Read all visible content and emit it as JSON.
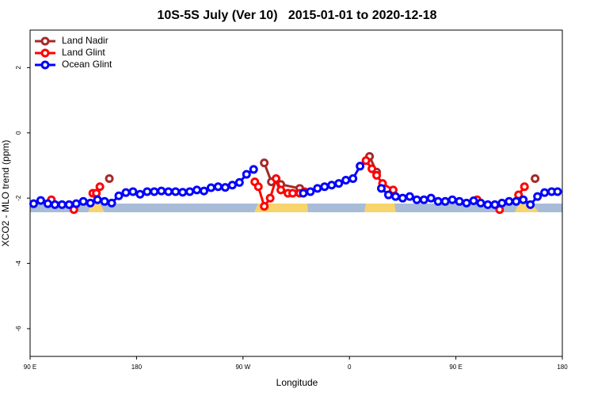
{
  "chart_data": {
    "type": "line",
    "title": "10S-5S July (Ver 10)   2015-01-01 to 2020-12-18",
    "xlabel": "Longitude",
    "ylabel": "XCO2 - MLO trend (ppm)",
    "xlim": [
      90,
      540
    ],
    "xticks": [
      {
        "value": 90,
        "label": "90 E"
      },
      {
        "value": 180,
        "label": "180"
      },
      {
        "value": 270,
        "label": "90 W"
      },
      {
        "value": 360,
        "label": "0"
      },
      {
        "value": 450,
        "label": "90 E"
      },
      {
        "value": 540,
        "label": "180"
      }
    ],
    "ylim": [
      -6.85,
      3.15
    ],
    "yticks": [
      -6,
      -4,
      -2,
      0,
      2
    ],
    "legend": "top-left",
    "series": [
      {
        "name": "Land Nadir",
        "color": "#a52a2a",
        "x": [
          157,
          null,
          288,
          294,
          302,
          318,
          null,
          377,
          383,
          null,
          517
        ],
        "values": [
          -1.4,
          null,
          -0.92,
          -1.5,
          -1.58,
          -1.7,
          null,
          -0.72,
          -1.2,
          null,
          -1.4
        ]
      },
      {
        "name": "Land Glint",
        "color": "#ff0000",
        "x": [
          108,
          127,
          null,
          143,
          146,
          149,
          null,
          280,
          283,
          288,
          293,
          298,
          302,
          308,
          312,
          318,
          322,
          null,
          374,
          379,
          383,
          388,
          397,
          null,
          468,
          487,
          null,
          503,
          508
        ],
        "values": [
          -2.05,
          -2.35,
          null,
          -1.85,
          -1.85,
          -1.65,
          null,
          -1.5,
          -1.65,
          -2.25,
          -2.0,
          -1.4,
          -1.75,
          -1.85,
          -1.85,
          -1.85,
          -1.8,
          null,
          -0.85,
          -1.1,
          -1.3,
          -1.55,
          -1.75,
          null,
          -2.05,
          -2.35,
          null,
          -1.9,
          -1.65
        ]
      },
      {
        "name": "Ocean Glint",
        "color": "#0000ff",
        "x": [
          93,
          99,
          105,
          111,
          117,
          123,
          129,
          135,
          141,
          147,
          153,
          159,
          165,
          171,
          177,
          183,
          189,
          195,
          201,
          207,
          213,
          219,
          225,
          231,
          237,
          243,
          249,
          255,
          261,
          267,
          273,
          279,
          null,
          321,
          327,
          333,
          339,
          345,
          351,
          357,
          363,
          369,
          null,
          387,
          393,
          399,
          405,
          411,
          417,
          423,
          429,
          435,
          441,
          447,
          453,
          459,
          465,
          471,
          477,
          483,
          489,
          495,
          501,
          507,
          513,
          519,
          525,
          531,
          536
        ],
        "values": [
          -2.17,
          -2.07,
          -2.17,
          -2.2,
          -2.2,
          -2.2,
          -2.17,
          -2.1,
          -2.15,
          -2.05,
          -2.1,
          -2.15,
          -1.93,
          -1.83,
          -1.8,
          -1.88,
          -1.8,
          -1.8,
          -1.78,
          -1.8,
          -1.8,
          -1.82,
          -1.8,
          -1.75,
          -1.78,
          -1.68,
          -1.65,
          -1.67,
          -1.6,
          -1.52,
          -1.27,
          -1.12,
          null,
          -1.85,
          -1.8,
          -1.7,
          -1.65,
          -1.6,
          -1.55,
          -1.45,
          -1.4,
          -1.02,
          null,
          -1.7,
          -1.9,
          -1.95,
          -2.0,
          -1.95,
          -2.05,
          -2.05,
          -2.0,
          -2.1,
          -2.1,
          -2.05,
          -2.1,
          -2.15,
          -2.08,
          -2.15,
          -2.2,
          -2.2,
          -2.15,
          -2.1,
          -2.1,
          -2.05,
          -2.2,
          -1.95,
          -1.83,
          -1.8,
          -1.8
        ]
      }
    ]
  }
}
